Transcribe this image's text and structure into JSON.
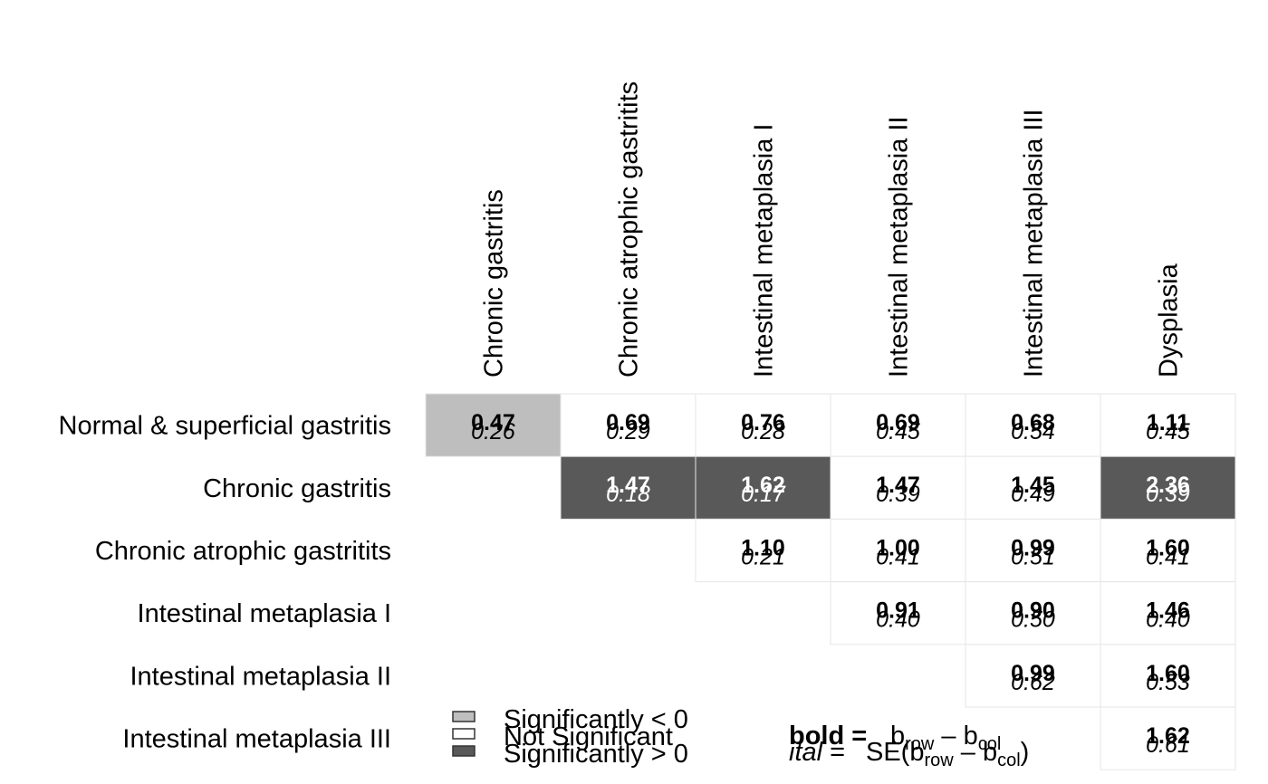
{
  "chart_data": {
    "type": "heatmap",
    "columns": [
      "Chronic gastritis",
      "Chronic atrophic gastritits",
      "Intestinal metaplasia I",
      "Intestinal metaplasia II",
      "Intestinal metaplasia III",
      "Dysplasia"
    ],
    "rows": [
      "Normal & superficial gastritis",
      "Chronic gastritis",
      "Chronic atrophic gastritits",
      "Intestinal metaplasia I",
      "Intestinal metaplasia II",
      "Intestinal metaplasia III"
    ],
    "cells": [
      {
        "row": 0,
        "col": 0,
        "estimate": "0.47",
        "se": "0.26",
        "significance": "lt0"
      },
      {
        "row": 0,
        "col": 1,
        "estimate": "0.69",
        "se": "0.29",
        "significance": "ns"
      },
      {
        "row": 0,
        "col": 2,
        "estimate": "0.76",
        "se": "0.28",
        "significance": "ns"
      },
      {
        "row": 0,
        "col": 3,
        "estimate": "0.69",
        "se": "0.45",
        "significance": "ns"
      },
      {
        "row": 0,
        "col": 4,
        "estimate": "0.68",
        "se": "0.54",
        "significance": "ns"
      },
      {
        "row": 0,
        "col": 5,
        "estimate": "1.11",
        "se": "0.45",
        "significance": "ns"
      },
      {
        "row": 1,
        "col": 1,
        "estimate": "1.47",
        "se": "0.18",
        "significance": "gt0"
      },
      {
        "row": 1,
        "col": 2,
        "estimate": "1.62",
        "se": "0.17",
        "significance": "gt0"
      },
      {
        "row": 1,
        "col": 3,
        "estimate": "1.47",
        "se": "0.39",
        "significance": "ns"
      },
      {
        "row": 1,
        "col": 4,
        "estimate": "1.45",
        "se": "0.49",
        "significance": "ns"
      },
      {
        "row": 1,
        "col": 5,
        "estimate": "2.36",
        "se": "0.39",
        "significance": "gt0"
      },
      {
        "row": 2,
        "col": 2,
        "estimate": "1.10",
        "se": "0.21",
        "significance": "ns"
      },
      {
        "row": 2,
        "col": 3,
        "estimate": "1.00",
        "se": "0.41",
        "significance": "ns"
      },
      {
        "row": 2,
        "col": 4,
        "estimate": "0.99",
        "se": "0.51",
        "significance": "ns"
      },
      {
        "row": 2,
        "col": 5,
        "estimate": "1.60",
        "se": "0.41",
        "significance": "ns"
      },
      {
        "row": 3,
        "col": 3,
        "estimate": "0.91",
        "se": "0.40",
        "significance": "ns"
      },
      {
        "row": 3,
        "col": 4,
        "estimate": "0.90",
        "se": "0.50",
        "significance": "ns"
      },
      {
        "row": 3,
        "col": 5,
        "estimate": "1.46",
        "se": "0.40",
        "significance": "ns"
      },
      {
        "row": 4,
        "col": 4,
        "estimate": "0.99",
        "se": "0.62",
        "significance": "ns"
      },
      {
        "row": 4,
        "col": 5,
        "estimate": "1.60",
        "se": "0.53",
        "significance": "ns"
      },
      {
        "row": 5,
        "col": 5,
        "estimate": "1.62",
        "se": "0.61",
        "significance": "ns"
      }
    ],
    "colors": {
      "lt0": "#bebebe",
      "ns": "#ffffff",
      "gt0": "#595959",
      "grid": "#e6e6e6",
      "text_on_dark": "#ffffff",
      "text_on_light": "#000000"
    },
    "legend": {
      "items": [
        {
          "key": "lt0",
          "label": "Significantly < 0"
        },
        {
          "key": "ns",
          "label": "Not Significant"
        },
        {
          "key": "gt0",
          "label": "Significantly > 0"
        }
      ],
      "bold_key": "bold =",
      "ital_key": "ital",
      "ital_eq": "=",
      "formula_b": "b",
      "formula_minus": " – b",
      "formula_se_open": "SE(b",
      "formula_close": ")",
      "sub_row": "row",
      "sub_col": "col"
    }
  }
}
